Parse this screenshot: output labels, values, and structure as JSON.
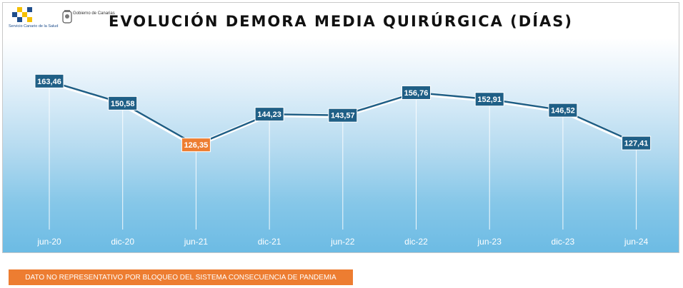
{
  "header": {
    "title": "EVOLUCIÓN DEMORA MEDIA QUIRÚRGICA (DÍAS)",
    "logo_scs": "Servicio Canario de la Salud",
    "logo_gobierno": "Gobierno de Canarias"
  },
  "chart_data": {
    "type": "line",
    "title": "EVOLUCIÓN DEMORA MEDIA QUIRÚRGICA (DÍAS)",
    "categories": [
      "jun-20",
      "dic-20",
      "jun-21",
      "dic-21",
      "jun-22",
      "dic-22",
      "jun-23",
      "dic-23",
      "jun-24"
    ],
    "values": [
      163.46,
      150.58,
      126.35,
      144.23,
      143.57,
      156.76,
      152.91,
      146.52,
      127.41
    ],
    "data_labels": [
      "163,46",
      "150,58",
      "126,35",
      "144,23",
      "143,57",
      "156,76",
      "152,91",
      "146,52",
      "127,41"
    ],
    "highlight_index": 2,
    "ylim": [
      70,
      175
    ],
    "grid": false,
    "colors": {
      "line": "#1f5f86",
      "label_bg": "#1f5f86",
      "highlight_bg": "#ed7d31",
      "label_text": "#ffffff"
    }
  },
  "footnote": {
    "text": "DATO NO REPRESENTATIVO POR BLOQUEO DEL SISTEMA CONSECUENCIA DE PANDEMIA",
    "color": "#ed7d31"
  }
}
